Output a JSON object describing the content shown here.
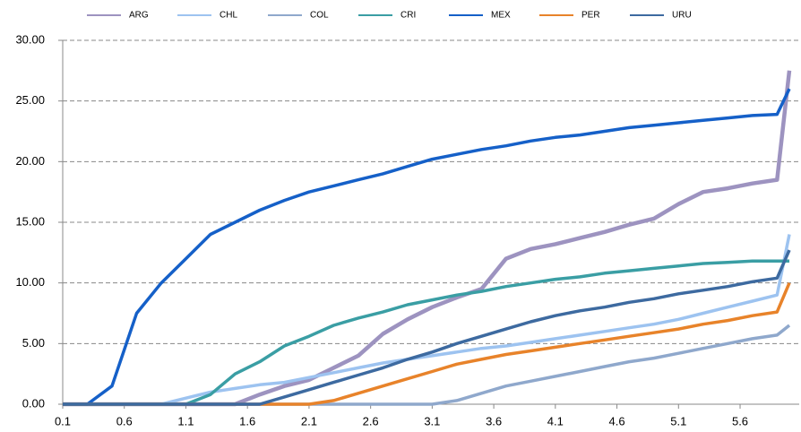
{
  "chart_data": {
    "type": "line",
    "x": [
      0.1,
      0.3,
      0.5,
      0.7,
      0.9,
      1.1,
      1.3,
      1.5,
      1.7,
      1.9,
      2.1,
      2.3,
      2.5,
      2.7,
      2.9,
      3.1,
      3.3,
      3.5,
      3.7,
      3.9,
      4.1,
      4.3,
      4.5,
      4.7,
      4.9,
      5.1,
      5.3,
      5.5,
      5.7,
      5.9,
      6.0
    ],
    "series": [
      {
        "name": "ARG",
        "color": "#9d93c0",
        "values": [
          0,
          0,
          0,
          0,
          0,
          0,
          0,
          0,
          0.8,
          1.5,
          2,
          3,
          4,
          5.8,
          7,
          8,
          8.8,
          9.5,
          12,
          12.8,
          13.2,
          13.7,
          14.2,
          14.8,
          15.3,
          16.5,
          17.5,
          17.8,
          18.2,
          18.5,
          27.5
        ]
      },
      {
        "name": "CHL",
        "color": "#9dc3f0",
        "values": [
          0,
          0,
          0,
          0,
          0,
          0.5,
          1,
          1.3,
          1.6,
          1.8,
          2.2,
          2.6,
          3,
          3.4,
          3.7,
          4,
          4.3,
          4.6,
          4.8,
          5.1,
          5.4,
          5.7,
          6,
          6.3,
          6.6,
          7,
          7.5,
          8,
          8.5,
          9,
          14
        ]
      },
      {
        "name": "COL",
        "color": "#8fa8cc",
        "values": [
          0,
          0,
          0,
          0,
          0,
          0,
          0,
          0,
          0,
          0,
          0,
          0,
          0,
          0,
          0,
          0,
          0.3,
          0.9,
          1.5,
          1.9,
          2.3,
          2.7,
          3.1,
          3.5,
          3.8,
          4.2,
          4.6,
          5,
          5.4,
          5.7,
          6.5
        ]
      },
      {
        "name": "CRI",
        "color": "#3a9ea4",
        "values": [
          0,
          0,
          0,
          0,
          0,
          0,
          0.8,
          2.5,
          3.5,
          4.8,
          5.6,
          6.5,
          7.1,
          7.6,
          8.2,
          8.6,
          9,
          9.3,
          9.7,
          10,
          10.3,
          10.5,
          10.8,
          11,
          11.2,
          11.4,
          11.6,
          11.7,
          11.8,
          11.8,
          11.8
        ]
      },
      {
        "name": "MEX",
        "color": "#1560c8",
        "values": [
          0,
          0,
          1.5,
          7.5,
          10,
          12,
          14,
          15,
          16,
          16.8,
          17.5,
          18,
          18.5,
          19,
          19.6,
          20.2,
          20.6,
          21,
          21.3,
          21.7,
          22,
          22.2,
          22.5,
          22.8,
          23,
          23.2,
          23.4,
          23.6,
          23.8,
          23.9,
          26
        ]
      },
      {
        "name": "PER",
        "color": "#e8832a",
        "values": [
          0,
          0,
          0,
          0,
          0,
          0,
          0,
          0,
          0,
          0,
          0,
          0.3,
          0.9,
          1.5,
          2.1,
          2.7,
          3.3,
          3.7,
          4.1,
          4.4,
          4.7,
          5,
          5.3,
          5.6,
          5.9,
          6.2,
          6.6,
          6.9,
          7.3,
          7.6,
          10
        ]
      },
      {
        "name": "URU",
        "color": "#3d6aa0",
        "values": [
          0,
          0,
          0,
          0,
          0,
          0,
          0,
          0,
          0,
          0.6,
          1.2,
          1.8,
          2.4,
          3,
          3.7,
          4.3,
          5,
          5.6,
          6.2,
          6.8,
          7.3,
          7.7,
          8,
          8.4,
          8.7,
          9.1,
          9.4,
          9.7,
          10.1,
          10.4,
          12.7
        ]
      }
    ],
    "xlim": [
      0.1,
      6.08
    ],
    "xticks": [
      0.1,
      0.6,
      1.1,
      1.6,
      2.1,
      2.6,
      3.1,
      3.6,
      4.1,
      4.6,
      5.1,
      5.6
    ],
    "ylim": [
      0,
      30
    ],
    "yticks": [
      {
        "value": 0,
        "label": "0.00"
      },
      {
        "value": 5,
        "label": "5.00"
      },
      {
        "value": 10,
        "label": "10.00"
      },
      {
        "value": 15,
        "label": "15.00"
      },
      {
        "value": 20,
        "label": "20.00"
      },
      {
        "value": 25,
        "label": "25.00"
      },
      {
        "value": 30,
        "label": "30.00"
      }
    ],
    "grid": true,
    "legend": "top"
  }
}
